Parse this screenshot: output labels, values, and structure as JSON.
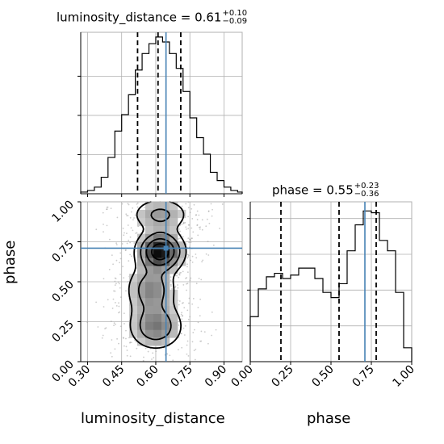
{
  "chart_data": [
    {
      "type": "histogram",
      "panel": "luminosity_distance marginal",
      "title_param": "luminosity_distance",
      "title_value": "0.61",
      "title_plus": "+0.10",
      "title_minus": "−0.09",
      "xlim": [
        0.27,
        0.98
      ],
      "bin_edges": [
        0.27,
        0.3,
        0.33,
        0.36,
        0.39,
        0.42,
        0.45,
        0.48,
        0.51,
        0.54,
        0.57,
        0.6,
        0.63,
        0.66,
        0.69,
        0.72,
        0.75,
        0.78,
        0.81,
        0.84,
        0.87,
        0.9,
        0.93,
        0.96,
        0.98
      ],
      "values": [
        1,
        2,
        4,
        10,
        22,
        38,
        48,
        60,
        75,
        85,
        91,
        95,
        92,
        85,
        76,
        62,
        46,
        34,
        24,
        13,
        8,
        4,
        2,
        1
      ],
      "quantile_lines": [
        0.52,
        0.61,
        0.71
      ],
      "truth": 0.645,
      "grid": true
    },
    {
      "type": "density_2d",
      "panel": "phase vs luminosity_distance",
      "xlabel": "luminosity_distance",
      "ylabel": "phase",
      "xlim": [
        0.27,
        0.98
      ],
      "ylim": [
        0.0,
        1.0
      ],
      "xticks": [
        "0.30",
        "0.45",
        "0.60",
        "0.75",
        "0.90"
      ],
      "yticks": [
        "0.00",
        "0.25",
        "0.50",
        "0.75",
        "1.00"
      ],
      "truth": [
        0.645,
        0.71
      ],
      "density_peaks": [
        {
          "x": 0.62,
          "y": 0.69,
          "sx": 0.055,
          "sy": 0.07,
          "w": 1.0
        },
        {
          "x": 0.58,
          "y": 0.45,
          "sx": 0.06,
          "sy": 0.09,
          "w": 0.45
        },
        {
          "x": 0.6,
          "y": 0.22,
          "sx": 0.065,
          "sy": 0.08,
          "w": 0.5
        },
        {
          "x": 0.62,
          "y": 0.92,
          "sx": 0.07,
          "sy": 0.06,
          "w": 0.35
        }
      ],
      "contour_levels": [
        0.12,
        0.3,
        0.55,
        0.8
      ],
      "grid": true
    },
    {
      "type": "histogram",
      "panel": "phase marginal",
      "title_param": "phase",
      "title_value": "0.55",
      "title_plus": "+0.23",
      "title_minus": "−0.36",
      "xlabel": "phase",
      "xlim": [
        0.0,
        1.0
      ],
      "xticks": [
        "0.00",
        "0.25",
        "0.50",
        "0.75",
        "1.00"
      ],
      "bin_edges": [
        0.0,
        0.05,
        0.1,
        0.15,
        0.2,
        0.25,
        0.3,
        0.35,
        0.4,
        0.45,
        0.5,
        0.55,
        0.6,
        0.65,
        0.7,
        0.75,
        0.8,
        0.85,
        0.9,
        0.95,
        1.0
      ],
      "values": [
        26,
        42,
        49,
        51,
        48,
        50,
        54,
        54,
        48,
        40,
        37,
        45,
        64,
        79,
        87,
        86,
        70,
        64,
        40,
        8
      ],
      "quantile_lines": [
        0.19,
        0.55,
        0.78
      ],
      "truth": 0.71,
      "grid": true
    }
  ],
  "colors": {
    "truth": "#4682b4",
    "hist": "#000000",
    "grid": "#b0b0b0",
    "points": "#9a9a9a"
  }
}
